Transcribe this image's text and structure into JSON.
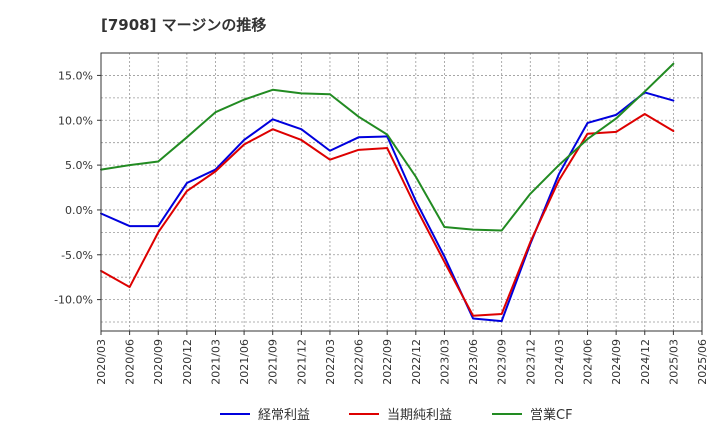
{
  "title": "[7908]  マージンの推移",
  "chart_data": {
    "type": "line",
    "x": [
      "2020/03",
      "2020/06",
      "2020/09",
      "2020/12",
      "2021/03",
      "2021/06",
      "2021/09",
      "2021/12",
      "2022/03",
      "2022/06",
      "2022/09",
      "2022/12",
      "2023/03",
      "2023/06",
      "2023/09",
      "2023/12",
      "2024/03",
      "2024/06",
      "2024/09",
      "2024/12",
      "2025/03",
      "2025/06"
    ],
    "ylim": [
      -13.5,
      17.5
    ],
    "yticks": [
      -10.0,
      -5.0,
      0.0,
      5.0,
      10.0,
      15.0
    ],
    "ytick_labels": [
      "-10.0%",
      "-5.0%",
      "0.0%",
      "5.0%",
      "10.0%",
      "15.0%"
    ],
    "grid": true,
    "legend_position": "bottom",
    "series": [
      {
        "name": "経常利益",
        "color": "#0000dd",
        "values": [
          -0.4,
          -1.8,
          -1.8,
          3.0,
          4.5,
          7.8,
          10.1,
          9.0,
          6.6,
          8.1,
          8.2,
          1.0,
          -5.2,
          -12.1,
          -12.4,
          -3.8,
          4.0,
          9.7,
          10.6,
          13.1,
          12.2,
          null
        ]
      },
      {
        "name": "当期純利益",
        "color": "#dd0000",
        "values": [
          -6.8,
          -8.6,
          -2.5,
          2.1,
          4.3,
          7.3,
          9.0,
          7.8,
          5.6,
          6.7,
          6.9,
          0.3,
          -5.8,
          -11.8,
          -11.6,
          -3.6,
          3.3,
          8.5,
          8.7,
          10.7,
          8.8,
          null
        ]
      },
      {
        "name": "営業CF",
        "color": "#228b22",
        "values": [
          4.5,
          5.0,
          5.4,
          8.1,
          10.9,
          12.3,
          13.4,
          13.0,
          12.9,
          10.4,
          8.4,
          3.7,
          -1.9,
          -2.2,
          -2.3,
          1.8,
          5.0,
          7.9,
          10.2,
          13.2,
          16.3,
          null
        ]
      }
    ]
  }
}
